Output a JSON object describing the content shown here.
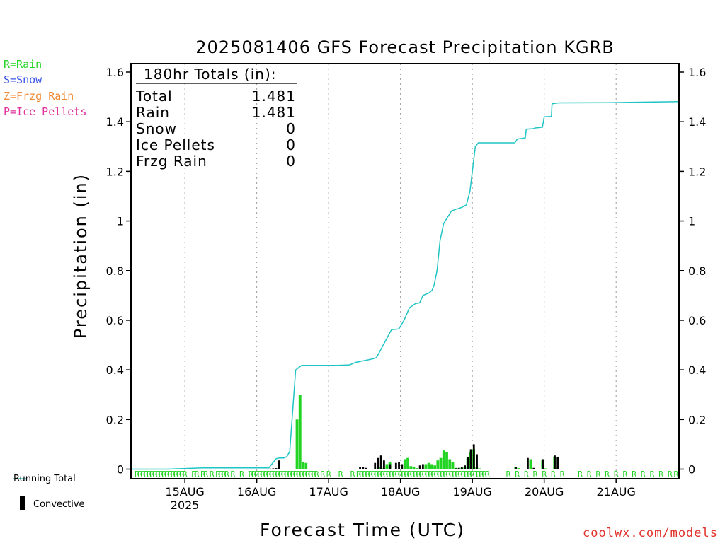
{
  "chart_data": {
    "type": "line",
    "title": "2025081406 GFS Forecast Precipitation KGRB",
    "xlabel": "Forecast Time (UTC)",
    "ylabel": "Precipitation (in)",
    "ylim": [
      0,
      1.6
    ],
    "yticks": [
      "0",
      "0.2",
      "0.4",
      "0.6",
      "0.8",
      "1",
      "1.2",
      "1.4",
      "1.6"
    ],
    "x_range_hours": [
      0,
      183
    ],
    "xticks": [
      {
        "label": "15AUG",
        "hour": 18
      },
      {
        "label": "16AUG",
        "hour": 42
      },
      {
        "label": "17AUG",
        "hour": 66
      },
      {
        "label": "18AUG",
        "hour": 90
      },
      {
        "label": "19AUG",
        "hour": 114
      },
      {
        "label": "20AUG",
        "hour": 138
      },
      {
        "label": "21AUG",
        "hour": 162
      }
    ],
    "xtick_sublabel": "2025",
    "grid": "vertical dotted at day boundaries",
    "series": [
      {
        "name": "Running Total",
        "color": "#1fc4c4",
        "x": [
          0,
          12,
          24,
          36,
          46,
          48.5,
          49.5,
          51,
          52,
          53,
          55,
          57,
          63,
          69,
          73,
          75,
          79,
          81,
          82,
          87,
          88,
          89.5,
          91.2,
          93,
          95,
          96.4,
          97.5,
          99.5,
          100.5,
          101.2,
          102.2,
          103.2,
          104.4,
          107,
          108,
          110.5,
          112,
          113.2,
          114.3,
          115,
          116,
          121,
          128.2,
          129,
          131.7,
          132,
          134.4,
          135,
          137.4,
          138,
          140.4,
          140.6,
          142,
          143,
          160,
          183
        ],
        "values": [
          0,
          0,
          0.005,
          0.005,
          0.005,
          0.042,
          0.045,
          0.045,
          0.05,
          0.07,
          0.4,
          0.418,
          0.418,
          0.418,
          0.42,
          0.43,
          0.44,
          0.445,
          0.45,
          0.562,
          0.563,
          0.565,
          0.6,
          0.65,
          0.667,
          0.67,
          0.7,
          0.71,
          0.72,
          0.74,
          0.8,
          0.92,
          0.99,
          1.04,
          1.045,
          1.055,
          1.065,
          1.12,
          1.23,
          1.3,
          1.315,
          1.315,
          1.315,
          1.33,
          1.335,
          1.37,
          1.372,
          1.375,
          1.378,
          1.42,
          1.421,
          1.472,
          1.475,
          1.476,
          1.477,
          1.481
        ]
      },
      {
        "name": "Rain",
        "type": "bar",
        "color": "#22d422",
        "x": [
          49.5,
          55.5,
          56.5,
          57.5,
          58.5,
          82.5,
          83.5,
          84.5,
          85.5,
          86.5,
          91.5,
          92.5,
          93.5,
          94.5,
          95.5,
          98.5,
          99.5,
          100.5,
          101.5,
          102.5,
          103.5,
          104.5,
          105.5,
          106.5,
          107.5,
          108.5,
          109.5,
          110.5,
          111.5,
          112.5,
          113.5,
          114.5,
          115.5,
          116.5,
          128.5,
          129.5,
          133.5,
          134.5,
          137.5,
          138.5,
          141.5,
          142.5
        ],
        "values": [
          0.003,
          0.2,
          0.3,
          0.03,
          0.025,
          0.005,
          0.008,
          0.004,
          0.02,
          0.03,
          0.04,
          0.045,
          0.012,
          0.01,
          0.004,
          0.02,
          0.025,
          0.02,
          0.015,
          0.035,
          0.045,
          0.075,
          0.07,
          0.04,
          0.03,
          0.005,
          0.003,
          0.005,
          0.01,
          0.045,
          0.07,
          0.08,
          0.01,
          0.003,
          0.008,
          0.004,
          0.04,
          0.003,
          0.035,
          0.003,
          0.05,
          0.005
        ]
      },
      {
        "name": "Convective",
        "type": "bar",
        "color": "#000000",
        "x": [
          46.5,
          47.5,
          48.5,
          49.5,
          76.5,
          77.5,
          78.5,
          81.5,
          82.5,
          83.5,
          84.5,
          86.5,
          88.5,
          89.5,
          90.5,
          96.5,
          97.5,
          108.5,
          109.5,
          110.5,
          111.5,
          112.5,
          113.5,
          114.5,
          115.5,
          128.5,
          132.5,
          134.5,
          137.5,
          141.5,
          142.5
        ],
        "values": [
          0.002,
          0.003,
          0.004,
          0.035,
          0.01,
          0.008,
          0.005,
          0.025,
          0.045,
          0.055,
          0.035,
          0.02,
          0.025,
          0.028,
          0.02,
          0.015,
          0.02,
          0.003,
          0.005,
          0.008,
          0.015,
          0.05,
          0.08,
          0.1,
          0.06,
          0.01,
          0.045,
          0.005,
          0.04,
          0.055,
          0.05
        ]
      }
    ],
    "precip_type_markers": {
      "color": "#22d422",
      "symbol": "R",
      "hours": [
        2,
        3,
        4,
        5,
        6,
        7,
        8,
        9,
        10,
        11,
        12,
        13,
        14,
        15,
        16,
        17,
        18,
        21,
        22,
        24,
        25,
        27,
        29,
        30,
        31,
        32,
        34,
        37,
        40,
        41,
        42,
        43,
        44,
        45,
        46,
        47,
        48,
        49,
        50,
        51,
        52,
        53,
        54,
        55,
        56,
        57,
        58,
        59,
        60,
        61,
        62,
        64,
        66,
        70,
        74,
        76,
        77,
        78,
        79,
        80,
        81,
        82,
        83,
        84,
        85,
        86,
        87,
        88,
        89,
        90,
        91,
        92,
        93,
        94,
        95,
        96,
        97,
        98,
        99,
        100,
        101,
        102,
        103,
        104,
        105,
        106,
        107,
        108,
        109,
        110,
        111,
        112,
        113,
        114,
        115,
        116,
        117,
        118,
        119,
        126,
        129,
        132,
        135,
        138,
        141,
        144,
        150,
        153,
        156,
        159,
        162,
        165,
        168,
        171,
        174,
        177,
        180,
        182
      ]
    },
    "totals_box": {
      "header": "180hr Totals (in):",
      "rows": [
        {
          "label": "Total",
          "value": "1.481"
        },
        {
          "label": "Rain",
          "value": "1.481"
        },
        {
          "label": "Snow",
          "value": "0"
        },
        {
          "label": "Ice Pellets",
          "value": "0"
        },
        {
          "label": "Frzg Rain",
          "value": "0"
        }
      ]
    }
  },
  "type_legend": [
    {
      "label": "R=Rain",
      "color": "#22d422"
    },
    {
      "label": "S=Snow",
      "color": "#3a54e6"
    },
    {
      "label": "Z=Frzg Rain",
      "color": "#f08a30"
    },
    {
      "label": "P=Ice Pellets",
      "color": "#e0309a"
    }
  ],
  "bottom_legend": {
    "running_total": "Running Total",
    "convective": "Convective"
  },
  "watermark": "coolwx.com/models"
}
